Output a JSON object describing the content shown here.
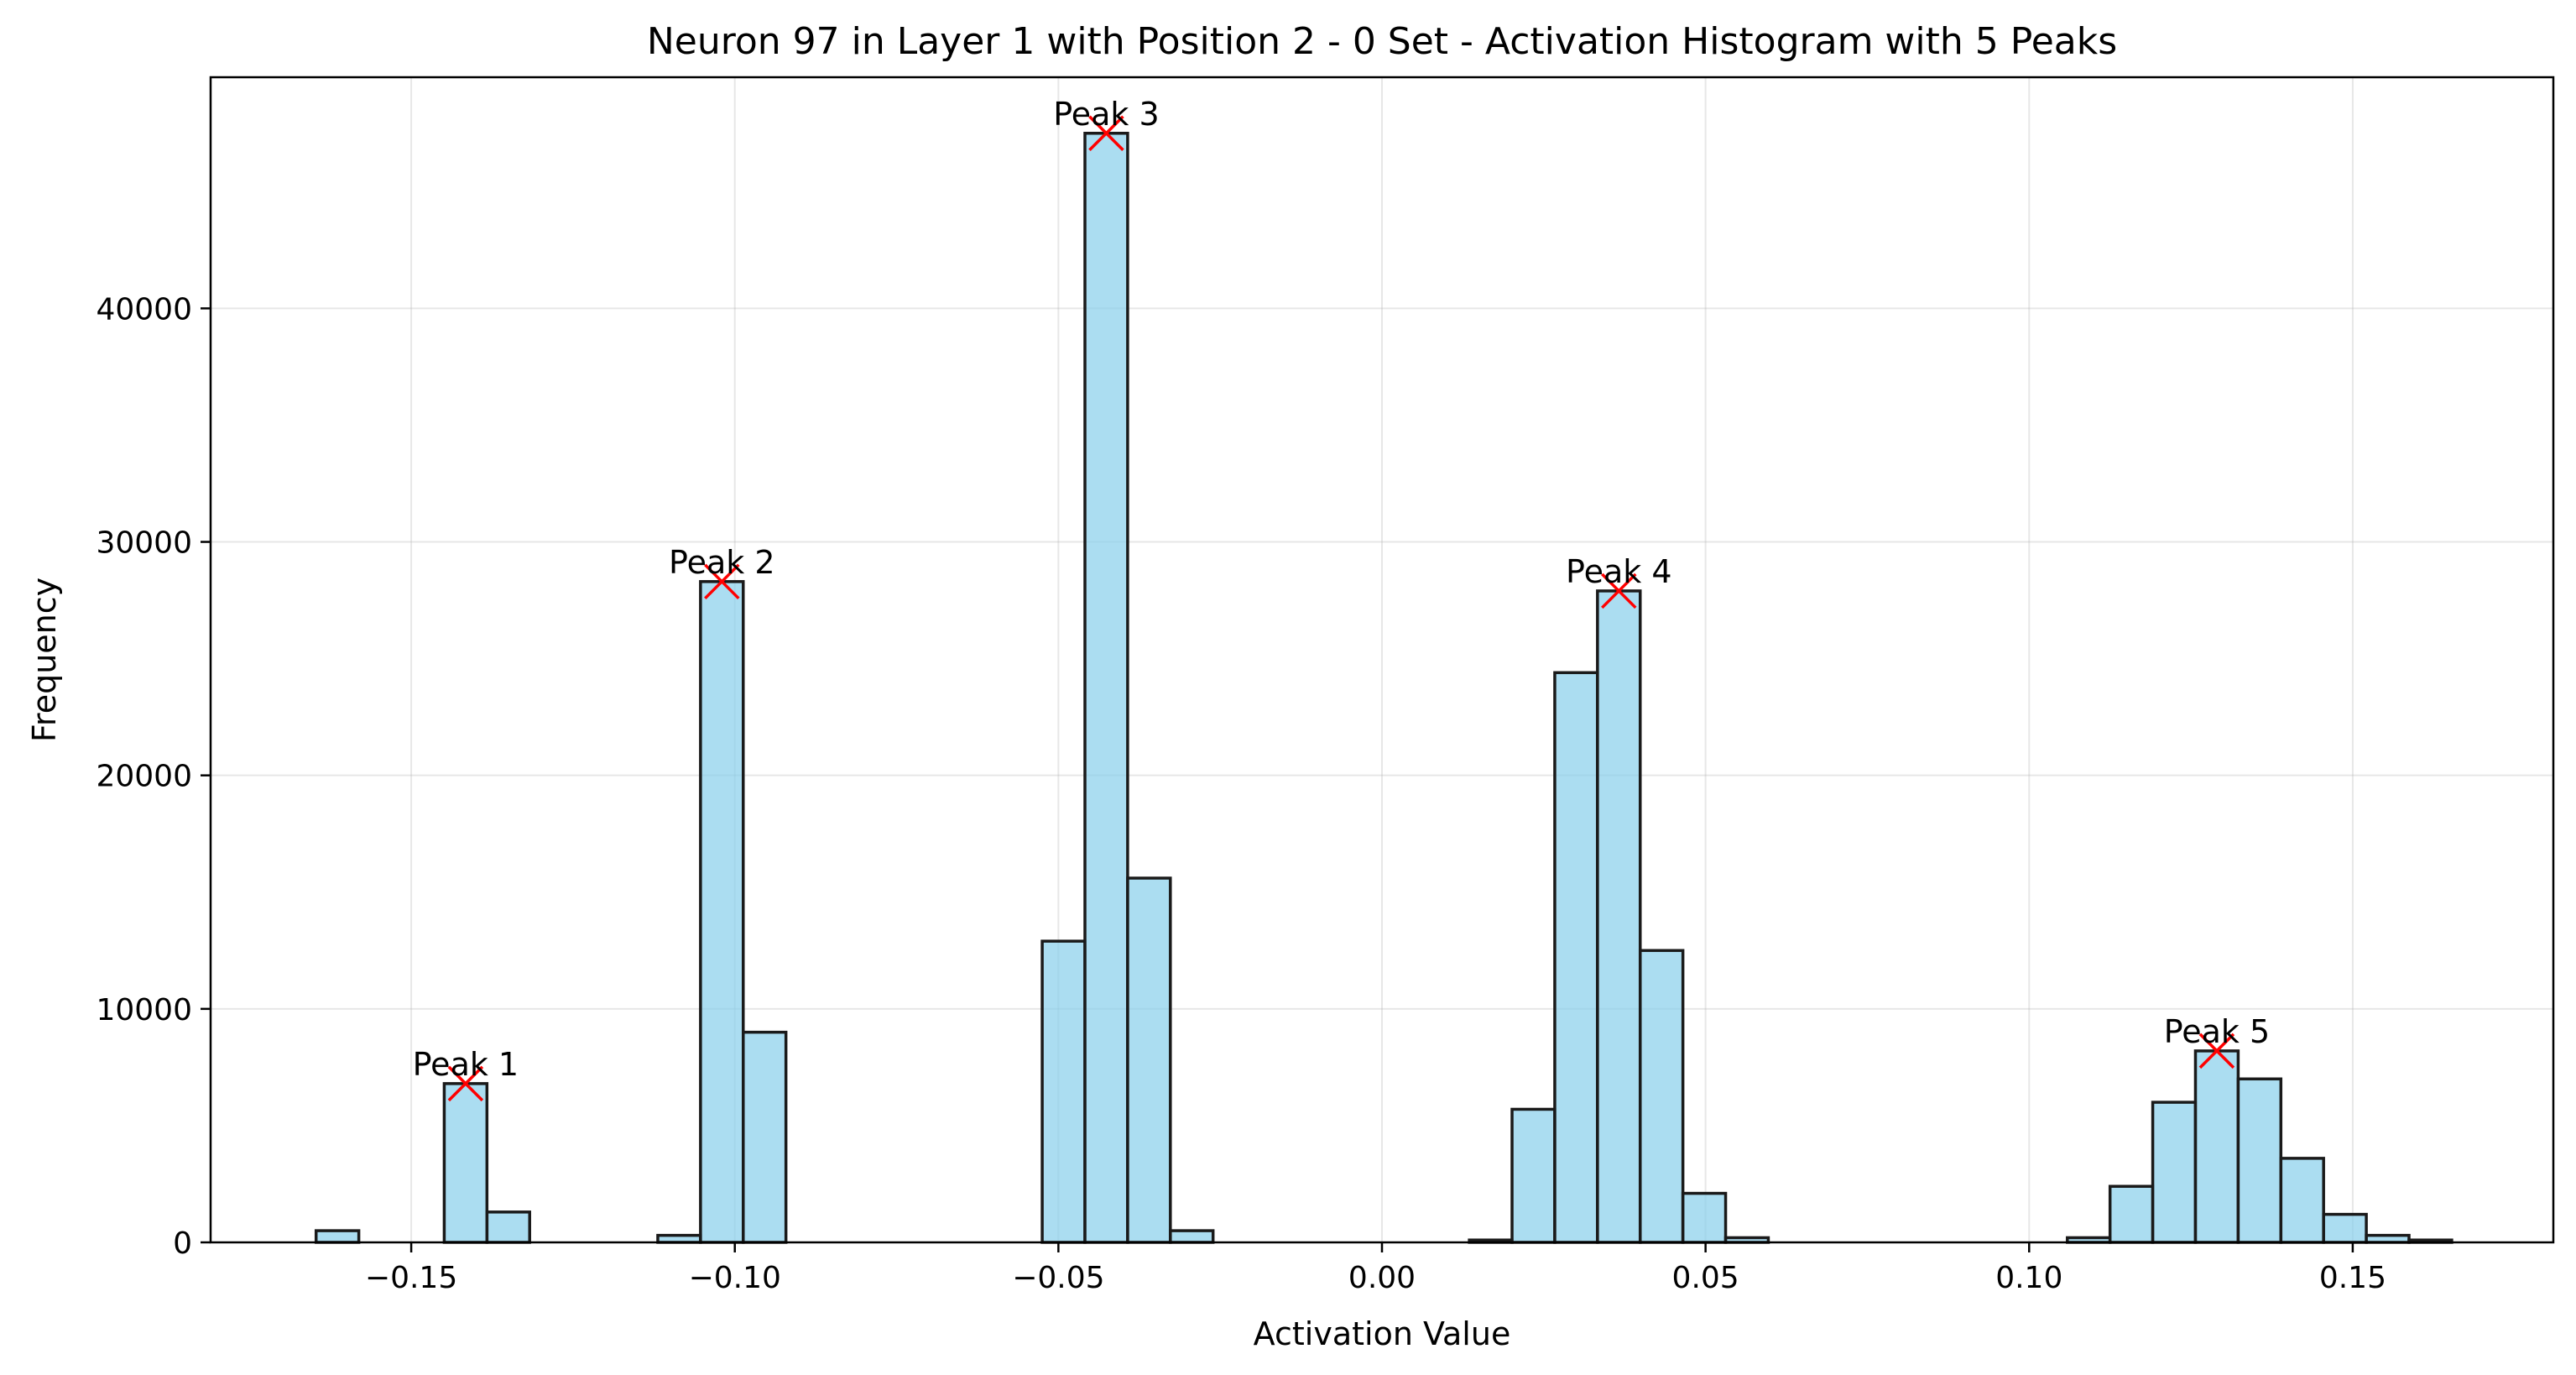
{
  "chart_data": {
    "type": "bar",
    "title": "Neuron 97 in Layer 1 with Position 2 - 0 Set - Activation Histogram with 5 Peaks",
    "xlabel": "Activation Value",
    "ylabel": "Frequency",
    "xlim": [
      -0.181,
      0.181
    ],
    "ylim": [
      0,
      49900
    ],
    "grid": true,
    "bar_color": "#87ceeb",
    "bar_edge_color": "#1a1a1a",
    "marker_color": "#ff0000",
    "bin_width": 0.0066,
    "x_ticks": [
      -0.15,
      -0.1,
      -0.05,
      0.0,
      0.05,
      0.1,
      0.15
    ],
    "x_tick_labels": [
      "−0.15",
      "−0.10",
      "−0.05",
      "0.00",
      "0.05",
      "0.10",
      "0.15"
    ],
    "y_ticks": [
      0,
      10000,
      20000,
      30000,
      40000
    ],
    "y_tick_labels": [
      "0",
      "10000",
      "20000",
      "30000",
      "40000"
    ],
    "bins": [
      {
        "x": -0.1614,
        "value": 500
      },
      {
        "x": -0.135,
        "value": 1300
      },
      {
        "x": -0.1416,
        "value": 6800
      },
      {
        "x": -0.1086,
        "value": 300
      },
      {
        "x": -0.102,
        "value": 28300
      },
      {
        "x": -0.0954,
        "value": 9000
      },
      {
        "x": -0.0492,
        "value": 12900
      },
      {
        "x": -0.0426,
        "value": 47500
      },
      {
        "x": -0.036,
        "value": 15600
      },
      {
        "x": -0.0294,
        "value": 500
      },
      {
        "x": 0.0168,
        "value": 100
      },
      {
        "x": 0.0234,
        "value": 5700
      },
      {
        "x": 0.03,
        "value": 24400
      },
      {
        "x": 0.0366,
        "value": 27900
      },
      {
        "x": 0.0432,
        "value": 12500
      },
      {
        "x": 0.0498,
        "value": 2100
      },
      {
        "x": 0.0564,
        "value": 200
      },
      {
        "x": 0.1092,
        "value": 200
      },
      {
        "x": 0.1158,
        "value": 2400
      },
      {
        "x": 0.1224,
        "value": 6000
      },
      {
        "x": 0.129,
        "value": 8200
      },
      {
        "x": 0.1356,
        "value": 7000
      },
      {
        "x": 0.1422,
        "value": 3600
      },
      {
        "x": 0.1488,
        "value": 1200
      },
      {
        "x": 0.1554,
        "value": 300
      },
      {
        "x": 0.162,
        "value": 100
      }
    ],
    "peaks": [
      {
        "label": "Peak 1",
        "x": -0.1416,
        "y": 6800
      },
      {
        "label": "Peak 2",
        "x": -0.102,
        "y": 28300
      },
      {
        "label": "Peak 3",
        "x": -0.0426,
        "y": 47500
      },
      {
        "label": "Peak 4",
        "x": 0.0366,
        "y": 27900
      },
      {
        "label": "Peak 5",
        "x": 0.129,
        "y": 8200
      }
    ]
  }
}
